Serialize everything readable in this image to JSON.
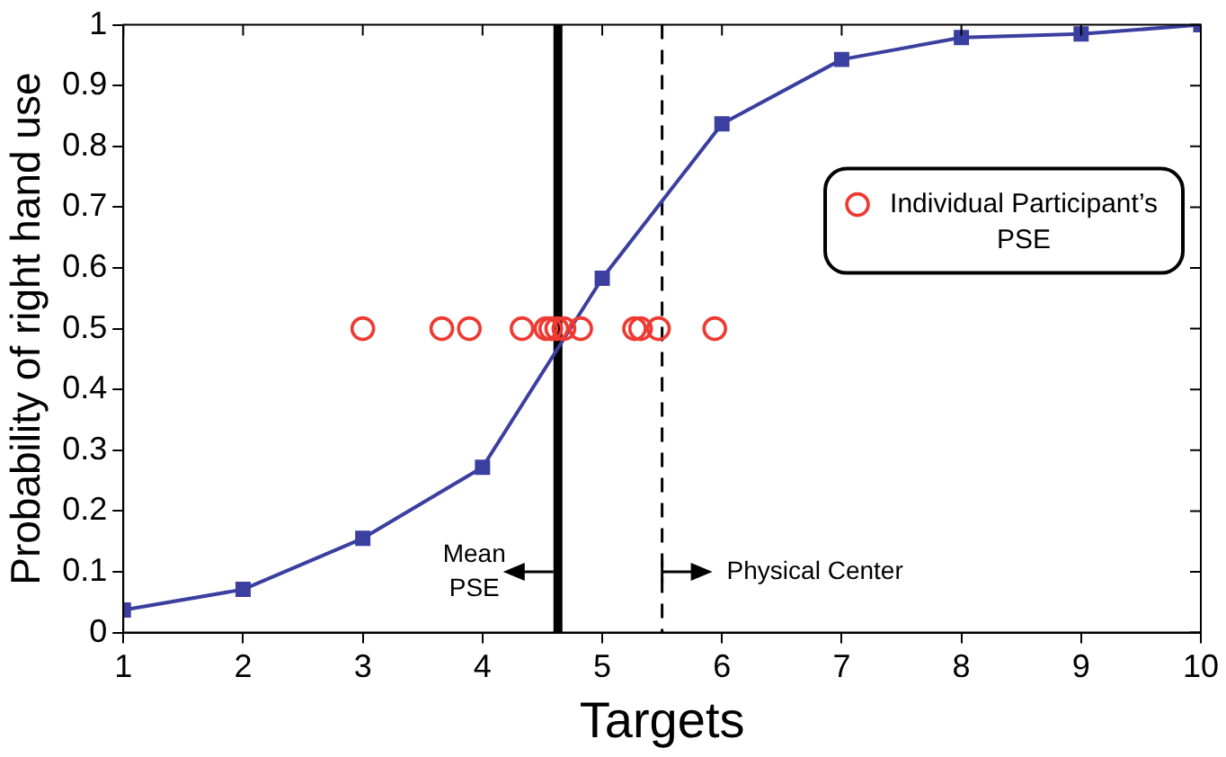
{
  "chart_data": {
    "type": "line",
    "xlabel": "Targets",
    "ylabel": "Probability of right hand use",
    "x": [
      1,
      2,
      3,
      4,
      5,
      6,
      7,
      8,
      9,
      10
    ],
    "series": [
      {
        "color": "#3a3fa0",
        "marker": "square",
        "values": [
          0.037,
          0.071,
          0.155,
          0.272,
          0.583,
          0.837,
          0.943,
          0.979,
          0.985,
          1.0
        ]
      },
      {
        "type": "scatter",
        "name": "Individual Participant’s PSE",
        "color": "#ee3a32",
        "marker": "circle",
        "x": [
          3.0,
          3.66,
          3.89,
          4.33,
          4.53,
          4.57,
          4.62,
          4.68,
          4.82,
          5.27,
          5.32,
          5.47,
          5.94
        ],
        "values": [
          0.5,
          0.5,
          0.5,
          0.5,
          0.5,
          0.5,
          0.5,
          0.5,
          0.5,
          0.5,
          0.5,
          0.5,
          0.5
        ]
      }
    ],
    "xlim": [
      1,
      10
    ],
    "xticks": [
      1,
      2,
      3,
      4,
      5,
      6,
      7,
      8,
      9,
      10
    ],
    "ylim": [
      0,
      1
    ],
    "yticks": [
      0,
      0.1,
      0.2,
      0.3,
      0.4,
      0.5,
      0.6,
      0.7,
      0.8,
      0.9,
      1
    ],
    "ref_lines": [
      {
        "axis": "x",
        "value": 4.63,
        "label": "Mean PSE",
        "color": "#000000",
        "line_style": "solid"
      },
      {
        "axis": "x",
        "value": 5.5,
        "label": "Physical Center",
        "color": "#000000",
        "line_style": "dashed"
      }
    ],
    "grid": false,
    "legend": "top right"
  }
}
